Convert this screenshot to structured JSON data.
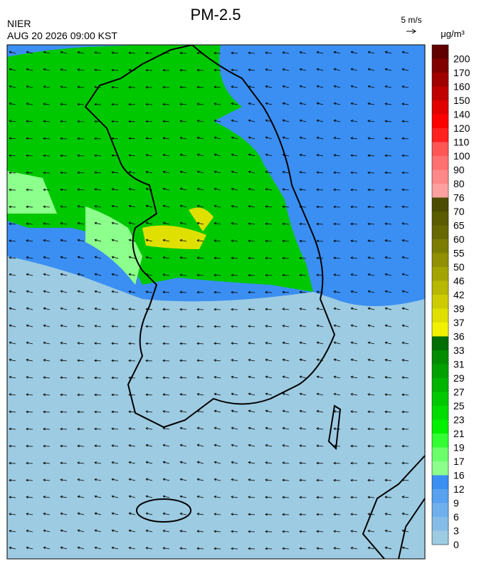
{
  "header": {
    "source": "NIER",
    "timestamp": "AUG 20 2026 09:00 KST",
    "title": "PM-2.5",
    "wind_scale": "5 m/s",
    "unit": "μg/m³"
  },
  "colorbar": {
    "ticks": [
      0,
      3,
      6,
      9,
      12,
      16,
      17,
      19,
      21,
      23,
      25,
      27,
      29,
      31,
      33,
      36,
      37,
      39,
      42,
      46,
      50,
      55,
      60,
      65,
      70,
      76,
      80,
      90,
      100,
      110,
      120,
      140,
      150,
      160,
      170,
      200
    ],
    "colors": [
      "#9dcbe2",
      "#86bde8",
      "#6fb0ec",
      "#58a2ef",
      "#3b8ff2",
      "#8cff8c",
      "#6cff6c",
      "#33ff33",
      "#00f000",
      "#00dc00",
      "#00c800",
      "#00b400",
      "#00a000",
      "#008c00",
      "#006e00",
      "#f2f200",
      "#e0e000",
      "#cccc00",
      "#b8b800",
      "#a4a400",
      "#909000",
      "#7c7c00",
      "#686800",
      "#5a5a00",
      "#4c4c00",
      "#ffa0a0",
      "#ff8888",
      "#ff7070",
      "#ff5555",
      "#ff2020",
      "#ff0000",
      "#e00000",
      "#c00000",
      "#a00000",
      "#800000",
      "#600000"
    ]
  }
}
